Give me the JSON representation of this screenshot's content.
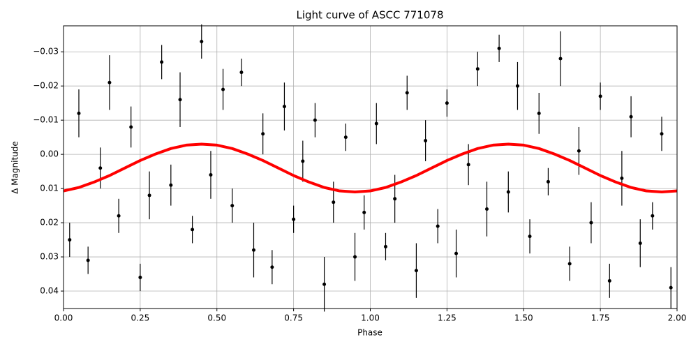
{
  "chart_data": {
    "type": "scatter",
    "title": "Light curve of ASCC 771078",
    "xlabel": "Phase",
    "ylabel": "Δ Magnitude",
    "xlim": [
      0,
      2
    ],
    "ylim": [
      -0.0376,
      0.0451
    ],
    "y_inverted": true,
    "grid": true,
    "xticks": [
      {
        "value": 0,
        "label": "0.00"
      },
      {
        "value": 0.25,
        "label": "0.25"
      },
      {
        "value": 0.5,
        "label": "0.50"
      },
      {
        "value": 0.75,
        "label": "0.75"
      },
      {
        "value": 1,
        "label": "1.00"
      },
      {
        "value": 1.25,
        "label": "1.25"
      },
      {
        "value": 1.5,
        "label": "1.50"
      },
      {
        "value": 1.75,
        "label": "1.75"
      },
      {
        "value": 2,
        "label": "2.00"
      }
    ],
    "yticks": [
      {
        "value": -0.03,
        "label": "−0.03"
      },
      {
        "value": -0.02,
        "label": "−0.02"
      },
      {
        "value": -0.01,
        "label": "−0.01"
      },
      {
        "value": 0,
        "label": "0.00"
      },
      {
        "value": 0.01,
        "label": "0.01"
      },
      {
        "value": 0.02,
        "label": "0.02"
      },
      {
        "value": 0.03,
        "label": "0.03"
      },
      {
        "value": 0.04,
        "label": "0.04"
      }
    ],
    "series": [
      {
        "type": "errorbar",
        "color": "#000000",
        "x": [
          0.02,
          0.05,
          0.08,
          0.12,
          0.15,
          0.18,
          0.22,
          0.25,
          0.28,
          0.32,
          0.35,
          0.38,
          0.42,
          0.45,
          0.48,
          0.52,
          0.55,
          0.58,
          0.62,
          0.65,
          0.68,
          0.72,
          0.75,
          0.78,
          0.82,
          0.85,
          0.88,
          0.92,
          0.95,
          0.98,
          1.02,
          1.05,
          1.08,
          1.12,
          1.15,
          1.18,
          1.22,
          1.25,
          1.28,
          1.32,
          1.35,
          1.38,
          1.42,
          1.45,
          1.48,
          1.52,
          1.55,
          1.58,
          1.62,
          1.65,
          1.68,
          1.72,
          1.75,
          1.78,
          1.82,
          1.85,
          1.88,
          1.92,
          1.95,
          1.98
        ],
        "values": [
          0.025,
          -0.012,
          0.031,
          0.004,
          -0.021,
          0.018,
          -0.008,
          0.036,
          0.012,
          -0.027,
          0.009,
          -0.016,
          0.022,
          -0.033,
          0.006,
          -0.019,
          0.015,
          -0.024,
          0.028,
          -0.006,
          0.033,
          -0.014,
          0.019,
          0.002,
          -0.01,
          0.038,
          0.014,
          -0.005,
          0.03,
          0.017,
          -0.009,
          0.027,
          0.013,
          -0.018,
          0.034,
          -0.004,
          0.021,
          -0.015,
          0.029,
          0.003,
          -0.025,
          0.016,
          -0.031,
          0.011,
          -0.02,
          0.024,
          -0.012,
          0.008,
          -0.028,
          0.032,
          -0.001,
          0.02,
          -0.017,
          0.037,
          0.007,
          -0.011,
          0.026,
          0.018,
          -0.006,
          0.039
        ],
        "errors": [
          0.005,
          0.007,
          0.004,
          0.006,
          0.008,
          0.005,
          0.006,
          0.004,
          0.007,
          0.005,
          0.006,
          0.008,
          0.004,
          0.005,
          0.007,
          0.006,
          0.005,
          0.004,
          0.008,
          0.006,
          0.005,
          0.007,
          0.004,
          0.006,
          0.005,
          0.008,
          0.006,
          0.004,
          0.007,
          0.005,
          0.006,
          0.004,
          0.007,
          0.005,
          0.008,
          0.006,
          0.005,
          0.004,
          0.007,
          0.006,
          0.005,
          0.008,
          0.004,
          0.006,
          0.007,
          0.005,
          0.006,
          0.004,
          0.008,
          0.005,
          0.007,
          0.006,
          0.004,
          0.005,
          0.008,
          0.006,
          0.007,
          0.004,
          0.005,
          0.006
        ]
      },
      {
        "type": "line",
        "color": "#ff0000",
        "x": [
          0,
          0.05,
          0.1,
          0.15,
          0.2,
          0.25,
          0.3,
          0.35,
          0.4,
          0.45,
          0.5,
          0.55,
          0.6,
          0.65,
          0.7,
          0.75,
          0.8,
          0.85,
          0.9,
          0.95,
          1,
          1.05,
          1.1,
          1.15,
          1.2,
          1.25,
          1.3,
          1.35,
          1.4,
          1.45,
          1.5,
          1.55,
          1.6,
          1.65,
          1.7,
          1.75,
          1.8,
          1.85,
          1.9,
          1.95,
          2
        ],
        "values": [
          0.0107,
          0.0097,
          0.0081,
          0.0062,
          0.004,
          0.0018,
          -0.0001,
          -0.0017,
          -0.0027,
          -0.003,
          -0.0027,
          -0.0017,
          -0.0001,
          0.0018,
          0.004,
          0.0062,
          0.0081,
          0.0097,
          0.0107,
          0.011,
          0.0107,
          0.0097,
          0.0081,
          0.0062,
          0.004,
          0.0018,
          -0.0001,
          -0.0017,
          -0.0027,
          -0.003,
          -0.0027,
          -0.0017,
          -0.0001,
          0.0018,
          0.004,
          0.0062,
          0.0081,
          0.0097,
          0.0107,
          0.011,
          0.0107
        ]
      }
    ]
  }
}
